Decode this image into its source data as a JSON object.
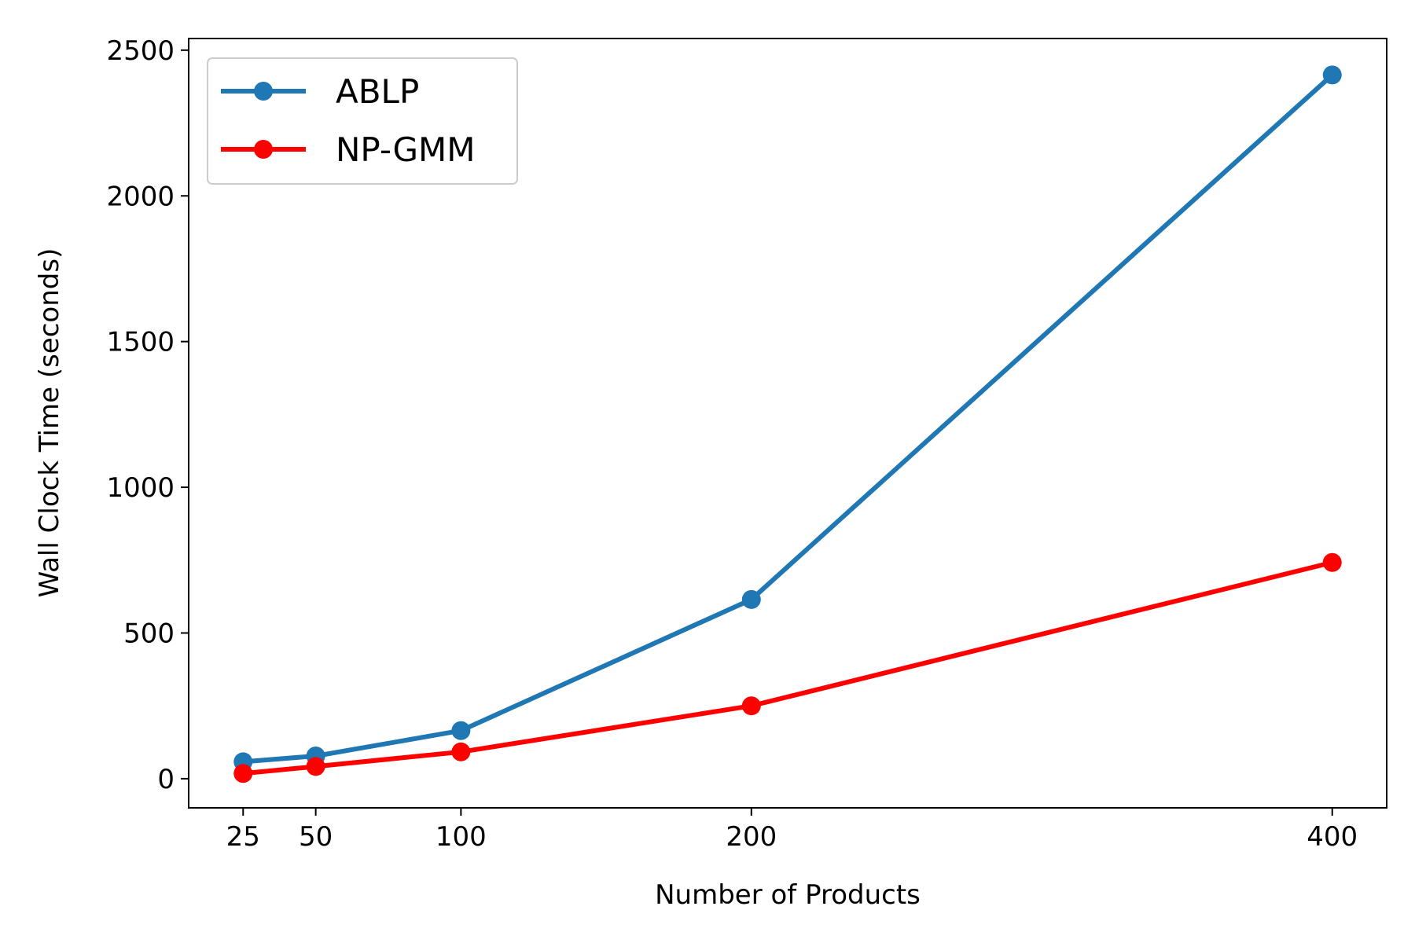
{
  "chart_data": {
    "type": "line",
    "title": "",
    "xlabel": "Number of Products",
    "ylabel": "Wall Clock Time (seconds)",
    "x": [
      25,
      50,
      100,
      200,
      400
    ],
    "xticks": [
      "25",
      "50",
      "100",
      "200",
      "400"
    ],
    "yticks": [
      "0",
      "500",
      "1000",
      "1500",
      "2000",
      "2500"
    ],
    "xlim": [
      6.25,
      418.75
    ],
    "ylim": [
      -100,
      2540
    ],
    "grid": false,
    "legend_position": "top-left",
    "series": [
      {
        "name": "ABLP",
        "color": "#1f77b4",
        "values": [
          58,
          78,
          165,
          615,
          2415
        ]
      },
      {
        "name": "NP-GMM",
        "color": "#ff0000",
        "values": [
          18,
          42,
          92,
          250,
          742
        ]
      }
    ]
  }
}
